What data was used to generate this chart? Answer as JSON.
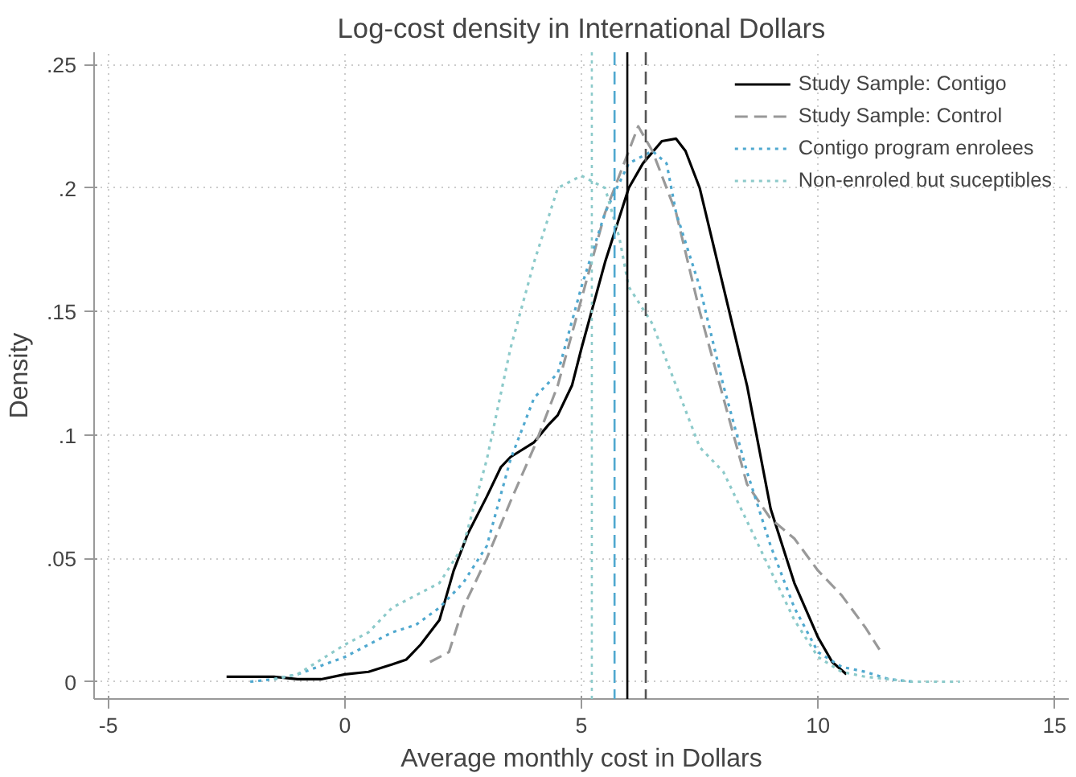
{
  "chart_data": {
    "type": "line",
    "title": "Log-cost density in International Dollars",
    "xlabel": "Average monthly cost in Dollars",
    "ylabel": "Density",
    "xlim": [
      -5.3,
      15.3
    ],
    "ylim": [
      -0.007,
      0.255
    ],
    "xticks": [
      -5,
      0,
      5,
      10,
      15
    ],
    "yticks": [
      {
        "value": 0,
        "label": "0"
      },
      {
        "value": 0.05,
        "label": ".05"
      },
      {
        "value": 0.1,
        "label": ".1"
      },
      {
        "value": 0.15,
        "label": ".15"
      },
      {
        "value": 0.2,
        "label": ".2"
      },
      {
        "value": 0.25,
        "label": ".25"
      }
    ],
    "grid": true,
    "legend": "top right",
    "marker": "none",
    "series": [
      {
        "name": "Study Sample: Contigo",
        "color": "#000000",
        "line_style": "solid",
        "x": [
          -2.5,
          -2,
          -1.5,
          -1,
          -0.5,
          0,
          0.5,
          1,
          1.3,
          1.6,
          2,
          2.3,
          2.6,
          3,
          3.3,
          3.5,
          4,
          4.3,
          4.5,
          4.8,
          5,
          5.5,
          6,
          6.3,
          6.7,
          7,
          7.2,
          7.5,
          8,
          8.5,
          9,
          9.5,
          10,
          10.3,
          10.6
        ],
        "values": [
          0.002,
          0.002,
          0.002,
          0.001,
          0.001,
          0.003,
          0.004,
          0.007,
          0.009,
          0.015,
          0.025,
          0.045,
          0.06,
          0.075,
          0.087,
          0.091,
          0.097,
          0.104,
          0.108,
          0.12,
          0.135,
          0.17,
          0.2,
          0.21,
          0.219,
          0.22,
          0.215,
          0.2,
          0.16,
          0.12,
          0.07,
          0.04,
          0.018,
          0.008,
          0.003
        ]
      },
      {
        "name": "Study Sample: Control",
        "color": "#999999",
        "line_style": "dashed",
        "x": [
          1.8,
          2.2,
          2.5,
          3,
          3.5,
          4,
          4.5,
          5,
          5.5,
          6,
          6.2,
          6.5,
          7,
          7.5,
          8,
          8.5,
          9,
          9.5,
          10,
          10.5,
          11,
          11.3
        ],
        "values": [
          0.008,
          0.012,
          0.03,
          0.05,
          0.073,
          0.095,
          0.12,
          0.155,
          0.19,
          0.215,
          0.225,
          0.215,
          0.19,
          0.15,
          0.115,
          0.08,
          0.066,
          0.058,
          0.045,
          0.035,
          0.022,
          0.013
        ]
      },
      {
        "name": "Contigo program enrolees",
        "color": "#4fa8cf",
        "line_style": "dotted",
        "x": [
          -2,
          -1.5,
          -1,
          0,
          0.5,
          1,
          1.5,
          2,
          2.5,
          3,
          3.5,
          4,
          4.5,
          5,
          5.5,
          6,
          6.5,
          6.8,
          7,
          7.5,
          8,
          8.5,
          9,
          9.5,
          10,
          10.5,
          11,
          11.5,
          12
        ],
        "values": [
          0,
          0.001,
          0.003,
          0.01,
          0.015,
          0.02,
          0.023,
          0.03,
          0.04,
          0.055,
          0.09,
          0.115,
          0.125,
          0.16,
          0.19,
          0.21,
          0.215,
          0.21,
          0.19,
          0.16,
          0.12,
          0.085,
          0.055,
          0.03,
          0.012,
          0.006,
          0.004,
          0.001,
          0
        ]
      },
      {
        "name": "Non-enroled but suceptibles",
        "color": "#8ccaca",
        "line_style": "dotted",
        "x": [
          -1.5,
          -1,
          0,
          0.5,
          1,
          1.5,
          2,
          2.5,
          3,
          3.5,
          4,
          4.5,
          5,
          5.5,
          5.8,
          6,
          6.5,
          7,
          7.5,
          8,
          8.5,
          9,
          9.5,
          10,
          10.5,
          11,
          12,
          13
        ],
        "values": [
          0.001,
          0.003,
          0.015,
          0.02,
          0.03,
          0.035,
          0.04,
          0.055,
          0.09,
          0.135,
          0.17,
          0.2,
          0.205,
          0.2,
          0.18,
          0.16,
          0.145,
          0.12,
          0.095,
          0.085,
          0.065,
          0.045,
          0.025,
          0.01,
          0.004,
          0.002,
          0,
          0
        ]
      }
    ],
    "ref_lines": [
      {
        "axis": "x",
        "value": 5.22,
        "color": "#8ccaca",
        "line_style": "dotted"
      },
      {
        "axis": "x",
        "value": 5.7,
        "color": "#4fa8cf",
        "line_style": "dashed"
      },
      {
        "axis": "x",
        "value": 5.97,
        "color": "#000000",
        "line_style": "solid"
      },
      {
        "axis": "x",
        "value": 6.36,
        "color": "#555555",
        "line_style": "dashed"
      }
    ]
  }
}
